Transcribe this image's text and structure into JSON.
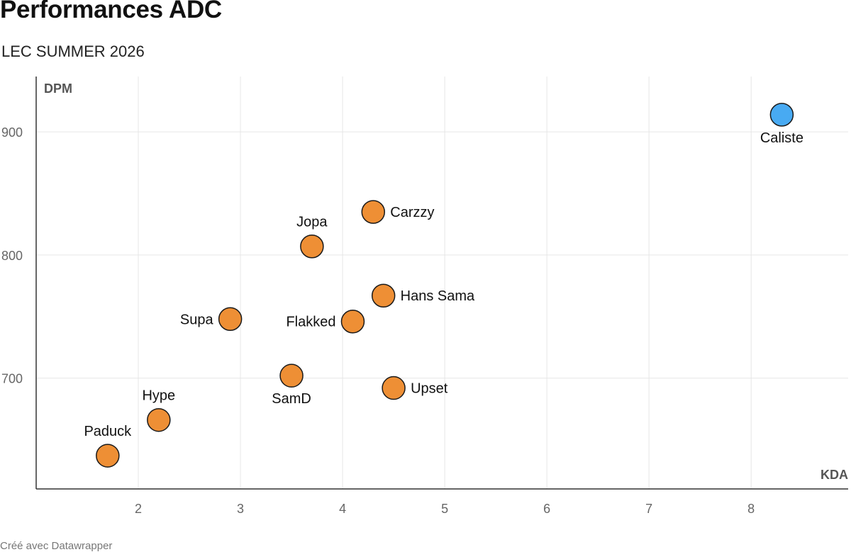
{
  "header": {
    "title": "Performances ADC",
    "subtitle": "LEC SUMMER 2026"
  },
  "footer": {
    "credit": "Créé avec Datawrapper"
  },
  "colors": {
    "default_point": "#ee8f35",
    "highlight_point": "#48aaf2",
    "point_stroke": "#1a1a1a",
    "grid": "#e6e6e6",
    "axis": "#333333"
  },
  "chart_data": {
    "type": "scatter",
    "title": "Performances ADC",
    "subtitle": "LEC SUMMER 2026",
    "xlabel": "KDA",
    "ylabel": "DPM",
    "xlim": [
      1.0,
      8.95
    ],
    "ylim": [
      610,
      945
    ],
    "xticks": [
      2,
      3,
      4,
      5,
      6,
      7,
      8
    ],
    "yticks": [
      700,
      800,
      900
    ],
    "grid": true,
    "points": [
      {
        "name": "Caliste",
        "x": 8.3,
        "y": 914,
        "label_pos": "bottom",
        "highlight": true
      },
      {
        "name": "Carzzy",
        "x": 4.3,
        "y": 835,
        "label_pos": "right",
        "highlight": false
      },
      {
        "name": "Jopa",
        "x": 3.7,
        "y": 807,
        "label_pos": "top",
        "highlight": false
      },
      {
        "name": "Hans Sama",
        "x": 4.4,
        "y": 767,
        "label_pos": "right",
        "highlight": false
      },
      {
        "name": "Supa",
        "x": 2.9,
        "y": 748,
        "label_pos": "left",
        "highlight": false
      },
      {
        "name": "Flakked",
        "x": 4.1,
        "y": 746,
        "label_pos": "left",
        "highlight": false
      },
      {
        "name": "SamD",
        "x": 3.5,
        "y": 702,
        "label_pos": "bottom",
        "highlight": false
      },
      {
        "name": "Upset",
        "x": 4.5,
        "y": 692,
        "label_pos": "right",
        "highlight": false
      },
      {
        "name": "Hype",
        "x": 2.2,
        "y": 666,
        "label_pos": "top",
        "highlight": false
      },
      {
        "name": "Paduck",
        "x": 1.7,
        "y": 637,
        "label_pos": "top",
        "highlight": false
      }
    ]
  }
}
